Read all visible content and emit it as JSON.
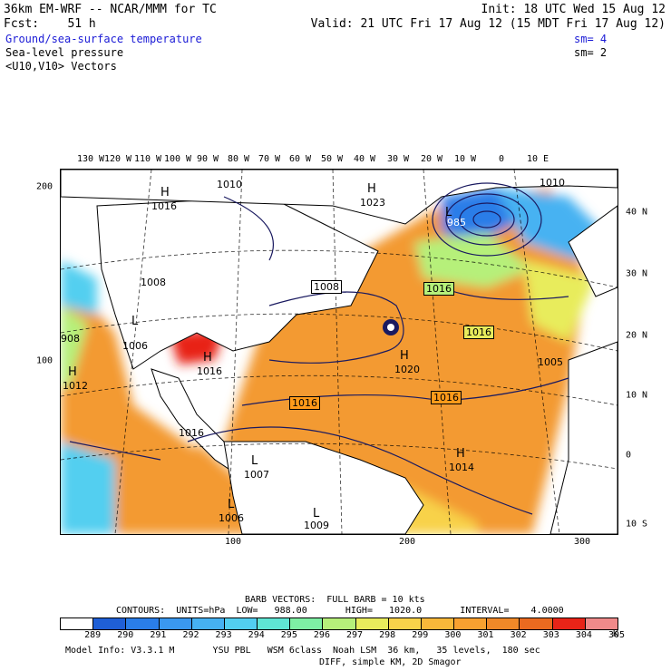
{
  "header": {
    "title": "36km EM-WRF -- NCAR/MMM for TC",
    "init": "Init: 18 UTC Wed 15 Aug 12",
    "fcst": "Fcst:    51 h",
    "valid": "Valid: 21 UTC Fri 17 Aug 12 (15 MDT Fri 17 Aug 12)",
    "field1": "Ground/sea-surface temperature",
    "field1_sm": "sm= 4",
    "field2": "Sea-level pressure",
    "field2_sm": "sm= 2",
    "field3": "<U10,V10> Vectors"
  },
  "axes": {
    "top": [
      "130 W",
      "120 W",
      "110 W",
      "100 W",
      "90 W",
      "80 W",
      "70 W",
      "60 W",
      "50 W",
      "40 W",
      "30 W",
      "20 W",
      "10 W",
      "0",
      "10 E"
    ],
    "right": [
      "40 N",
      "30 N",
      "20 N",
      "10 N",
      "0",
      "10 S"
    ],
    "left": [
      "200",
      "100"
    ],
    "bottom": [
      "100",
      "200",
      "300"
    ]
  },
  "map_labels": {
    "highs": [
      {
        "h": "H",
        "v": "1016"
      },
      {
        "h": "H",
        "v": "1016"
      },
      {
        "h": "H",
        "v": "1020"
      },
      {
        "h": "H",
        "v": "1014"
      },
      {
        "h": "H",
        "v": "1012"
      },
      {
        "h": "H",
        "v": "1023"
      }
    ],
    "lows": [
      {
        "h": "L",
        "v": "1006"
      },
      {
        "h": "L",
        "v": "1007"
      },
      {
        "h": "L",
        "v": "985"
      },
      {
        "h": "L",
        "v": "1006"
      },
      {
        "h": "L",
        "v": "1009"
      }
    ],
    "contour_boxes": [
      "1008",
      "1016",
      "1016",
      "1016",
      "1016"
    ],
    "misc": [
      "1016",
      "1005",
      "1010",
      "908",
      "1008",
      "1010"
    ]
  },
  "footer": {
    "barb": "BARB VECTORS:  FULL BARB = 10 kts",
    "contours": "CONTOURS:  UNITS=hPa  LOW=   988.00       HIGH=   1020.0       INTERVAL=    4.0000",
    "colorbar_labels": [
      "289",
      "290",
      "291",
      "292",
      "293",
      "294",
      "295",
      "296",
      "297",
      "298",
      "299",
      "300",
      "301",
      "302",
      "303",
      "304",
      "305"
    ],
    "colorbar_unit": "K",
    "model_info": "Model Info: V3.3.1 M       YSU PBL   WSM 6class  Noah LSM  36 km,   35 levels,  180 sec",
    "model_info2": "DIFF, simple KM, 2D Smagor"
  },
  "colors": {
    "colorbar": [
      "#ffffff",
      "#1f5fd6",
      "#2a7de8",
      "#3a98f0",
      "#46b2f2",
      "#52cff0",
      "#5fe6d4",
      "#7ef0a4",
      "#b6f07a",
      "#e8ec5c",
      "#f8d24a",
      "#f8b83a",
      "#f8a030",
      "#f08828",
      "#ea6a20",
      "#e82418",
      "#f08a8a"
    ],
    "ocean_main": "#f39a30",
    "ocean_warm": "#ea6a20",
    "ocean_cool": "#3a98f0",
    "land": "#ffffff",
    "contour": "#1a1a60"
  }
}
